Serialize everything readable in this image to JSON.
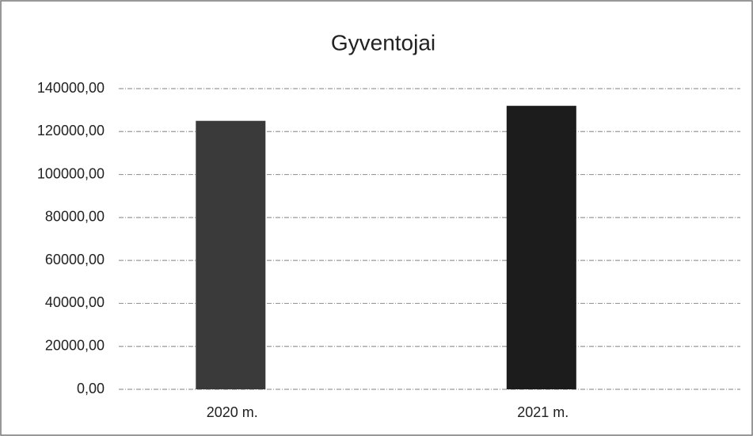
{
  "chart_data": {
    "type": "bar",
    "title": "Gyventojai",
    "categories": [
      "2020 m.",
      "2021 m."
    ],
    "values": [
      125000,
      132000
    ],
    "colors": [
      "#3a3a3a",
      "#1c1c1c"
    ],
    "ylim": [
      0,
      140000
    ],
    "yticks": [
      {
        "value": 0,
        "label": "0,00"
      },
      {
        "value": 20000,
        "label": "20000,00"
      },
      {
        "value": 40000,
        "label": "40000,00"
      },
      {
        "value": 60000,
        "label": "60000,00"
      },
      {
        "value": 80000,
        "label": "80000,00"
      },
      {
        "value": 100000,
        "label": "100000,00"
      },
      {
        "value": 120000,
        "label": "120000,00"
      },
      {
        "value": 140000,
        "label": "140000,00"
      }
    ],
    "grid": true
  }
}
